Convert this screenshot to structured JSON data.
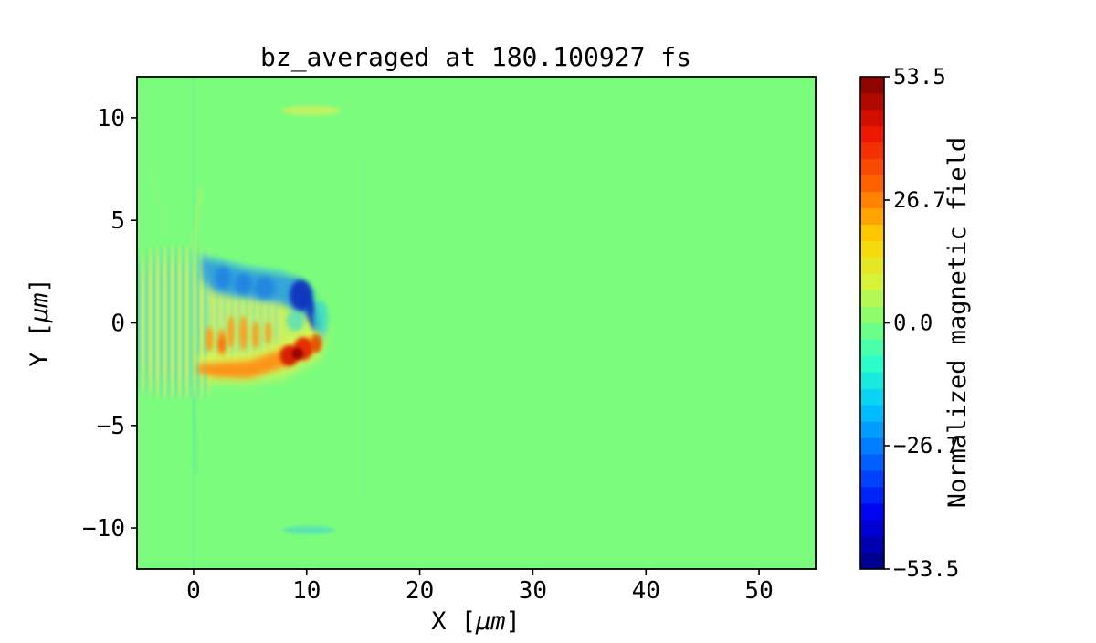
{
  "chart_data": {
    "type": "heatmap",
    "title": "bz_averaged at 180.100927 fs",
    "xlabel": "X [μm]",
    "xlabel_parts": [
      "X [",
      "μm",
      "]"
    ],
    "ylabel": "Y [μm]",
    "ylabel_parts": [
      "Y [",
      "μm",
      "]"
    ],
    "xlim": [
      -5,
      55
    ],
    "ylim": [
      -12,
      12
    ],
    "xticks": [
      0,
      10,
      20,
      30,
      40,
      50
    ],
    "xtick_labels": [
      "0",
      "10",
      "20",
      "30",
      "40",
      "50"
    ],
    "yticks": [
      10,
      5,
      0,
      -5,
      -10
    ],
    "ytick_labels": [
      "10",
      "5",
      "0",
      "−5",
      "−10"
    ],
    "grid": false,
    "background_value": 0.0,
    "background_color": "#7bfc7d",
    "colorbar": {
      "label": "Normalized magnetic field",
      "vmin": -53.5,
      "vmax": 53.5,
      "ticks": [
        53.5,
        26.7,
        0.0,
        -26.7,
        -53.5
      ],
      "tick_labels": [
        "53.5",
        "26.7",
        "0.0",
        "−26.7",
        "−53.5"
      ],
      "cmap": "jet",
      "segments": 30,
      "stops": [
        [
          0.0,
          "#00007f"
        ],
        [
          0.11,
          "#0000f0"
        ],
        [
          0.2,
          "#0050ff"
        ],
        [
          0.33,
          "#00c8ff"
        ],
        [
          0.42,
          "#2cffc8"
        ],
        [
          0.5,
          "#7cff79"
        ],
        [
          0.58,
          "#d4f43c"
        ],
        [
          0.67,
          "#ffd400"
        ],
        [
          0.78,
          "#ff6400"
        ],
        [
          0.89,
          "#eb1300"
        ],
        [
          1.0,
          "#7f0000"
        ]
      ]
    },
    "features": [
      {
        "id": "plume-yellow-base",
        "kind": "polygon",
        "points": [
          [
            0.3,
            2.4
          ],
          [
            4,
            1.6
          ],
          [
            8,
            1.2
          ],
          [
            10.8,
            0.6
          ],
          [
            11.9,
            -0.2
          ],
          [
            11.3,
            -1.7
          ],
          [
            8,
            -2.7
          ],
          [
            4,
            -3.0
          ],
          [
            0.8,
            -2.9
          ],
          [
            0.2,
            -1.0
          ]
        ],
        "color": "#d9f158",
        "opacity": 0.78,
        "blur": 5
      },
      {
        "id": "laser-stripes",
        "kind": "stripes",
        "x0": -4.95,
        "period": 0.65,
        "count": 10,
        "width": 0.3,
        "y0": -3.8,
        "y1": 3.8,
        "colorA": "#3edbb0",
        "colorB": "#d8f055",
        "opacity": 0.95,
        "blur": 1.5,
        "fade": {
          "cx": -1.3,
          "cy": 0,
          "rx": 7.6,
          "ry": 4.1
        }
      },
      {
        "id": "plume-inner-stripes",
        "kind": "stripes",
        "x0": 1.3,
        "period": 0.65,
        "count": 10,
        "width": 0.3,
        "y0": -1.8,
        "y1": 2.2,
        "colorA": "#49d8c0",
        "colorB": "#e0ee50",
        "opacity": 0.55,
        "blur": 2,
        "fade": {
          "cx": 4.5,
          "cy": 0.2,
          "rx": 5.0,
          "ry": 2.6
        }
      },
      {
        "id": "cyan-top-fringe",
        "kind": "line",
        "pts": [
          [
            0.65,
            3.3
          ],
          [
            4,
            2.8
          ],
          [
            8,
            2.45
          ]
        ],
        "width": 0.22,
        "color": "#52dfd8",
        "opacity": 0.85,
        "blur": 2
      },
      {
        "id": "blue-band",
        "kind": "polygon",
        "points": [
          [
            0.65,
            3.2
          ],
          [
            2.5,
            2.95
          ],
          [
            5,
            2.6
          ],
          [
            7.5,
            2.4
          ],
          [
            9.3,
            2.2
          ],
          [
            10.5,
            1.6
          ],
          [
            10.9,
            0.6
          ],
          [
            10.0,
            0.35
          ],
          [
            9.0,
            0.6
          ],
          [
            7.5,
            1.0
          ],
          [
            5.5,
            1.15
          ],
          [
            3.5,
            1.3
          ],
          [
            1.8,
            1.5
          ],
          [
            0.8,
            2.1
          ]
        ],
        "color": "#2d9de4",
        "opacity": 0.92,
        "blur": 4
      },
      {
        "id": "blue-patch-1",
        "kind": "ellipse",
        "cx": 2.6,
        "cy": 2.2,
        "rx": 0.7,
        "ry": 0.55,
        "color": "#1a7de0",
        "opacity": 0.75,
        "blur": 3
      },
      {
        "id": "blue-patch-2",
        "kind": "ellipse",
        "cx": 4.4,
        "cy": 1.9,
        "rx": 0.8,
        "ry": 0.5,
        "color": "#1a7de0",
        "opacity": 0.75,
        "blur": 3
      },
      {
        "id": "blue-patch-3",
        "kind": "ellipse",
        "cx": 6.3,
        "cy": 1.7,
        "rx": 0.9,
        "ry": 0.55,
        "color": "#1a7de0",
        "opacity": 0.7,
        "blur": 3
      },
      {
        "id": "cyan-pocket",
        "kind": "ellipse",
        "cx": 9.0,
        "cy": 0.1,
        "rx": 0.8,
        "ry": 0.5,
        "color": "#45dcc8",
        "opacity": 0.7,
        "blur": 2.5
      },
      {
        "id": "dark-blue-core",
        "kind": "ellipse",
        "cx": 9.5,
        "cy": 1.35,
        "rx": 1.0,
        "ry": 0.75,
        "color": "#0c2fbb",
        "opacity": 0.9,
        "blur": 2.5
      },
      {
        "id": "dark-blue-streak",
        "kind": "ellipse",
        "cx": 10.55,
        "cy": 0.35,
        "rx": 0.5,
        "ry": 0.95,
        "color": "#0d36c0",
        "opacity": 0.85,
        "blur": 2.5,
        "rotate": -18
      },
      {
        "id": "tip-cyan",
        "kind": "ellipse",
        "cx": 11.25,
        "cy": 0.1,
        "rx": 0.65,
        "ry": 1.0,
        "color": "#37d8cf",
        "opacity": 0.8,
        "blur": 2.5
      },
      {
        "id": "orange-blob-1",
        "kind": "ellipse",
        "cx": 1.4,
        "cy": -0.8,
        "rx": 0.35,
        "ry": 0.6,
        "color": "#ff9712",
        "opacity": 0.85,
        "blur": 2
      },
      {
        "id": "orange-blob-2",
        "kind": "ellipse",
        "cx": 2.5,
        "cy": -1.0,
        "rx": 0.4,
        "ry": 0.7,
        "color": "#ff9712",
        "opacity": 0.85,
        "blur": 2
      },
      {
        "id": "orange-blob-3",
        "kind": "ellipse",
        "cx": 3.3,
        "cy": -0.45,
        "rx": 0.3,
        "ry": 0.8,
        "color": "#ff9712",
        "opacity": 0.85,
        "blur": 2
      },
      {
        "id": "orange-blob-4",
        "kind": "ellipse",
        "cx": 4.4,
        "cy": -0.5,
        "rx": 0.35,
        "ry": 0.85,
        "color": "#ff9712",
        "opacity": 0.85,
        "blur": 2
      },
      {
        "id": "orange-blob-5",
        "kind": "ellipse",
        "cx": 5.5,
        "cy": -0.6,
        "rx": 0.3,
        "ry": 0.7,
        "color": "#ff9712",
        "opacity": 0.85,
        "blur": 2
      },
      {
        "id": "orange-blob-6",
        "kind": "ellipse",
        "cx": 6.6,
        "cy": -0.5,
        "rx": 0.28,
        "ry": 0.55,
        "color": "#ff9712",
        "opacity": 0.8,
        "blur": 2
      },
      {
        "id": "red-blob-mid",
        "kind": "ellipse",
        "cx": 2.5,
        "cy": -1.05,
        "rx": 0.3,
        "ry": 0.4,
        "color": "#f05000",
        "opacity": 0.5,
        "blur": 2
      },
      {
        "id": "orange-band-halo",
        "kind": "polygon",
        "points": [
          [
            0.2,
            -1.9
          ],
          [
            2,
            -2.2
          ],
          [
            5,
            -2.4
          ],
          [
            8,
            -1.9
          ],
          [
            10.5,
            -1.3
          ],
          [
            11.6,
            -0.7
          ],
          [
            10.8,
            -0.3
          ],
          [
            8,
            -0.9
          ],
          [
            5,
            -1.5
          ],
          [
            2,
            -1.6
          ],
          [
            0.3,
            -1.6
          ]
        ],
        "color": "#e2f24e",
        "opacity": 0.8,
        "blur": 4
      },
      {
        "id": "orange-band",
        "kind": "polygon",
        "points": [
          [
            0.3,
            -2.4
          ],
          [
            2,
            -2.65
          ],
          [
            5,
            -2.7
          ],
          [
            8,
            -2.15
          ],
          [
            10,
            -1.65
          ],
          [
            11.2,
            -1.15
          ],
          [
            10.6,
            -0.75
          ],
          [
            8,
            -1.25
          ],
          [
            5,
            -1.85
          ],
          [
            2,
            -1.95
          ],
          [
            0.4,
            -2.05
          ]
        ],
        "color": "#ff9013",
        "opacity": 0.95,
        "blur": 3.5
      },
      {
        "id": "red-core-left",
        "kind": "ellipse",
        "cx": 8.45,
        "cy": -1.6,
        "rx": 0.8,
        "ry": 0.5,
        "color": "#d31400",
        "opacity": 0.9,
        "blur": 2
      },
      {
        "id": "red-core-right",
        "kind": "ellipse",
        "cx": 9.7,
        "cy": -1.25,
        "rx": 0.85,
        "ry": 0.55,
        "color": "#e22200",
        "opacity": 0.9,
        "blur": 2
      },
      {
        "id": "red-core-dark",
        "kind": "ellipse",
        "cx": 9.2,
        "cy": -1.5,
        "rx": 0.5,
        "ry": 0.3,
        "color": "#8f0300",
        "opacity": 0.85,
        "blur": 1.5
      },
      {
        "id": "red-tip",
        "kind": "ellipse",
        "cx": 10.85,
        "cy": -1.0,
        "rx": 0.5,
        "ry": 0.45,
        "color": "#e04800",
        "opacity": 0.85,
        "blur": 2
      },
      {
        "id": "axis-line-x0",
        "kind": "rect",
        "x": -0.08,
        "y": 12,
        "w": 0.16,
        "h": 24,
        "color": "#5ce2a8",
        "opacity": 0.4,
        "blur": 1
      },
      {
        "id": "faint-line-x15",
        "kind": "rect",
        "x": 15.0,
        "y": 8.0,
        "w": 0.15,
        "h": 16.5,
        "color": "#62e4b2",
        "opacity": 0.3,
        "blur": 1
      },
      {
        "id": "upper-wisp",
        "kind": "line",
        "pts": [
          [
            -0.1,
            3.6
          ],
          [
            0.7,
            6.6
          ]
        ],
        "width": 0.3,
        "color": "#c0ee6a",
        "opacity": 0.55,
        "blur": 2
      },
      {
        "id": "upper-left-wisp",
        "kind": "line",
        "pts": [
          [
            -3.8,
            7.6
          ],
          [
            -2.3,
            4.4
          ]
        ],
        "width": 0.25,
        "color": "#b2ec80",
        "opacity": 0.3,
        "blur": 2.5
      },
      {
        "id": "lower-wisp",
        "kind": "line",
        "pts": [
          [
            0.0,
            -3.5
          ],
          [
            0.25,
            -7.3
          ]
        ],
        "width": 0.25,
        "color": "#5adfa6",
        "opacity": 0.5,
        "blur": 2
      },
      {
        "id": "top-streak",
        "kind": "ellipse",
        "cx": 10.4,
        "cy": 10.35,
        "rx": 2.6,
        "ry": 0.25,
        "color": "#c6f25e",
        "opacity": 0.85,
        "blur": 1.5
      },
      {
        "id": "bottom-streak",
        "kind": "ellipse",
        "cx": 10.2,
        "cy": -10.1,
        "rx": 2.3,
        "ry": 0.2,
        "color": "#55e2b8",
        "opacity": 0.85,
        "blur": 1.5
      }
    ]
  }
}
